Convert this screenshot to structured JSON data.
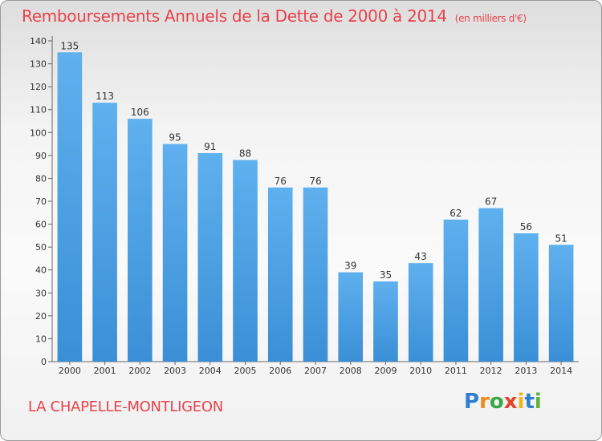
{
  "chart_data": {
    "type": "bar",
    "title": "Remboursements Annuels de la Dette de 2000 à 2014",
    "subtitle": "(en milliers d'€)",
    "categories": [
      "2000",
      "2001",
      "2002",
      "2003",
      "2004",
      "2005",
      "2006",
      "2007",
      "2008",
      "2009",
      "2010",
      "2011",
      "2012",
      "2013",
      "2014"
    ],
    "values": [
      135,
      113,
      106,
      95,
      91,
      88,
      76,
      76,
      39,
      35,
      43,
      62,
      67,
      56,
      51
    ],
    "ylim": [
      0,
      140
    ],
    "yticks": [
      0,
      10,
      20,
      30,
      40,
      50,
      60,
      70,
      80,
      90,
      100,
      110,
      120,
      130,
      140
    ],
    "xlabel": "",
    "ylabel": "",
    "grid": false,
    "bar_color": "#3a8fd6"
  },
  "footer": {
    "city": "LA CHAPELLE-MONTLIGEON",
    "logo": [
      "P",
      "r",
      "o",
      "x",
      "i",
      "t",
      "i"
    ],
    "logo_colors": [
      "#2f7fd0",
      "#f08a1c",
      "#3aa84a",
      "#e2442c",
      "#f0b31c",
      "#2f7fd0",
      "#5ab43c"
    ]
  }
}
